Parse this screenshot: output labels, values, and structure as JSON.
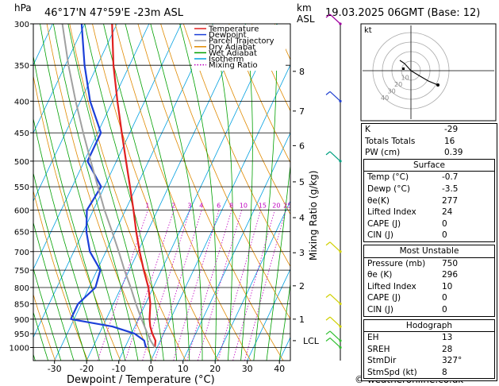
{
  "header": {
    "location": "46°17'N  47°59'E  -23m  ASL",
    "datetime": "19.03.2025  06GMT  (Base: 12)",
    "pressure_unit": "hPa",
    "km_label": "km",
    "asl_label": "ASL"
  },
  "footer": {
    "credit": "© weatheronline.co.uk"
  },
  "chart_data": {
    "type": "line",
    "title": "",
    "xlabel": "Dewpoint / Temperature (°C)",
    "ylabel": "hPa",
    "right_label": "Mixing Ratio (g/kg)",
    "x_ticks": [
      -30,
      -20,
      -10,
      0,
      10,
      20,
      30,
      40
    ],
    "y_ticks": [
      300,
      350,
      400,
      450,
      500,
      550,
      600,
      650,
      700,
      750,
      800,
      850,
      900,
      950,
      1000
    ],
    "xlim": [
      -40,
      40
    ],
    "ylim": [
      1050,
      300
    ],
    "skew": "45°",
    "legend": {
      "position": "top-center",
      "entries": [
        {
          "name": "Temperature",
          "color": "#e02020"
        },
        {
          "name": "Dewpoint",
          "color": "#1c3fd8"
        },
        {
          "name": "Parcel Trajectory",
          "color": "#a0a0a0"
        },
        {
          "name": "Dry Adiabat",
          "color": "#e08a00"
        },
        {
          "name": "Wet Adiabat",
          "color": "#00a000"
        },
        {
          "name": "Isotherm",
          "color": "#00a0e0"
        },
        {
          "name": "Mixing Ratio",
          "color": "#c000c0"
        }
      ]
    },
    "km_ticks": [
      {
        "label": "8",
        "pressure": 358
      },
      {
        "label": "7",
        "pressure": 415
      },
      {
        "label": "6",
        "pressure": 472
      },
      {
        "label": "5",
        "pressure": 540
      },
      {
        "label": "4",
        "pressure": 617
      },
      {
        "label": "3",
        "pressure": 703
      },
      {
        "label": "2",
        "pressure": 795
      },
      {
        "label": "1",
        "pressure": 900
      },
      {
        "label": "LCL",
        "pressure": 975
      }
    ],
    "mixing_ratio_labels": [
      "1",
      "2",
      "3",
      "4",
      "6",
      "8",
      "10",
      "15",
      "20",
      "25"
    ],
    "series": [
      {
        "name": "Temperature",
        "color": "#e02020",
        "points": [
          {
            "p": 1000,
            "t": -0.7
          },
          {
            "p": 975,
            "t": -1.5
          },
          {
            "p": 950,
            "t": -3.5
          },
          {
            "p": 925,
            "t": -5.2
          },
          {
            "p": 900,
            "t": -6.5
          },
          {
            "p": 850,
            "t": -8.5
          },
          {
            "p": 800,
            "t": -11.5
          },
          {
            "p": 750,
            "t": -15.5
          },
          {
            "p": 700,
            "t": -19.5
          },
          {
            "p": 650,
            "t": -23.5
          },
          {
            "p": 600,
            "t": -27.5
          },
          {
            "p": 550,
            "t": -32.0
          },
          {
            "p": 500,
            "t": -37.0
          },
          {
            "p": 450,
            "t": -42.5
          },
          {
            "p": 400,
            "t": -48.5
          },
          {
            "p": 350,
            "t": -55.0
          },
          {
            "p": 300,
            "t": -61.5
          }
        ]
      },
      {
        "name": "Dewpoint",
        "color": "#1c3fd8",
        "points": [
          {
            "p": 1000,
            "t": -3.5
          },
          {
            "p": 975,
            "t": -5.0
          },
          {
            "p": 950,
            "t": -9.0
          },
          {
            "p": 925,
            "t": -17.0
          },
          {
            "p": 900,
            "t": -31.0
          },
          {
            "p": 850,
            "t": -31.0
          },
          {
            "p": 800,
            "t": -28.0
          },
          {
            "p": 750,
            "t": -29.0
          },
          {
            "p": 700,
            "t": -35.0
          },
          {
            "p": 650,
            "t": -39.0
          },
          {
            "p": 600,
            "t": -42.0
          },
          {
            "p": 550,
            "t": -41.0
          },
          {
            "p": 500,
            "t": -49.0
          },
          {
            "p": 450,
            "t": -49.0
          },
          {
            "p": 400,
            "t": -57.0
          },
          {
            "p": 350,
            "t": -64.0
          },
          {
            "p": 300,
            "t": -71.0
          }
        ]
      },
      {
        "name": "Parcel Trajectory",
        "color": "#a0a0a0",
        "points": [
          {
            "p": 1000,
            "t": -0.7
          },
          {
            "p": 975,
            "t": -3.0
          },
          {
            "p": 950,
            "t": -5.0
          },
          {
            "p": 900,
            "t": -9.0
          },
          {
            "p": 850,
            "t": -13.0
          },
          {
            "p": 800,
            "t": -17.0
          },
          {
            "p": 750,
            "t": -21.5
          },
          {
            "p": 700,
            "t": -26.0
          },
          {
            "p": 650,
            "t": -31.0
          },
          {
            "p": 600,
            "t": -36.5
          },
          {
            "p": 550,
            "t": -42.0
          },
          {
            "p": 500,
            "t": -48.0
          },
          {
            "p": 450,
            "t": -54.5
          },
          {
            "p": 400,
            "t": -61.5
          },
          {
            "p": 350,
            "t": -69.0
          },
          {
            "p": 300,
            "t": -77.0
          }
        ]
      }
    ],
    "wind_barbs": [
      {
        "p": 300,
        "color": "#a000a0"
      },
      {
        "p": 400,
        "color": "#2040d0"
      },
      {
        "p": 500,
        "color": "#00a080"
      },
      {
        "p": 700,
        "color": "#d0d000"
      },
      {
        "p": 850,
        "color": "#d0d000"
      },
      {
        "p": 925,
        "color": "#d0d000"
      },
      {
        "p": 975,
        "color": "#30c030"
      },
      {
        "p": 1000,
        "color": "#30c030"
      }
    ]
  },
  "hodograph": {
    "unit_label": "kt",
    "rings": [
      "10",
      "20",
      "30",
      "40"
    ]
  },
  "indices": [
    {
      "label": "K",
      "value": "-29"
    },
    {
      "label": "Totals Totals",
      "value": "16"
    },
    {
      "label": "PW (cm)",
      "value": "0.39"
    }
  ],
  "surface": {
    "title": "Surface",
    "rows": [
      {
        "label": "Temp (°C)",
        "value": "-0.7"
      },
      {
        "label": "Dewp (°C)",
        "value": "-3.5"
      },
      {
        "label": "θe(K)",
        "value": "277"
      },
      {
        "label": "Lifted Index",
        "value": "24"
      },
      {
        "label": "CAPE (J)",
        "value": "0"
      },
      {
        "label": "CIN (J)",
        "value": "0"
      }
    ]
  },
  "most_unstable": {
    "title": "Most Unstable",
    "rows": [
      {
        "label": "Pressure (mb)",
        "value": "750"
      },
      {
        "label": "θe (K)",
        "value": "296"
      },
      {
        "label": "Lifted Index",
        "value": "10"
      },
      {
        "label": "CAPE (J)",
        "value": "0"
      },
      {
        "label": "CIN (J)",
        "value": "0"
      }
    ]
  },
  "hodograph_table": {
    "title": "Hodograph",
    "rows": [
      {
        "label": "EH",
        "value": "13"
      },
      {
        "label": "SREH",
        "value": "28"
      },
      {
        "label": "StmDir",
        "value": "327°"
      },
      {
        "label": "StmSpd (kt)",
        "value": "8"
      }
    ]
  }
}
